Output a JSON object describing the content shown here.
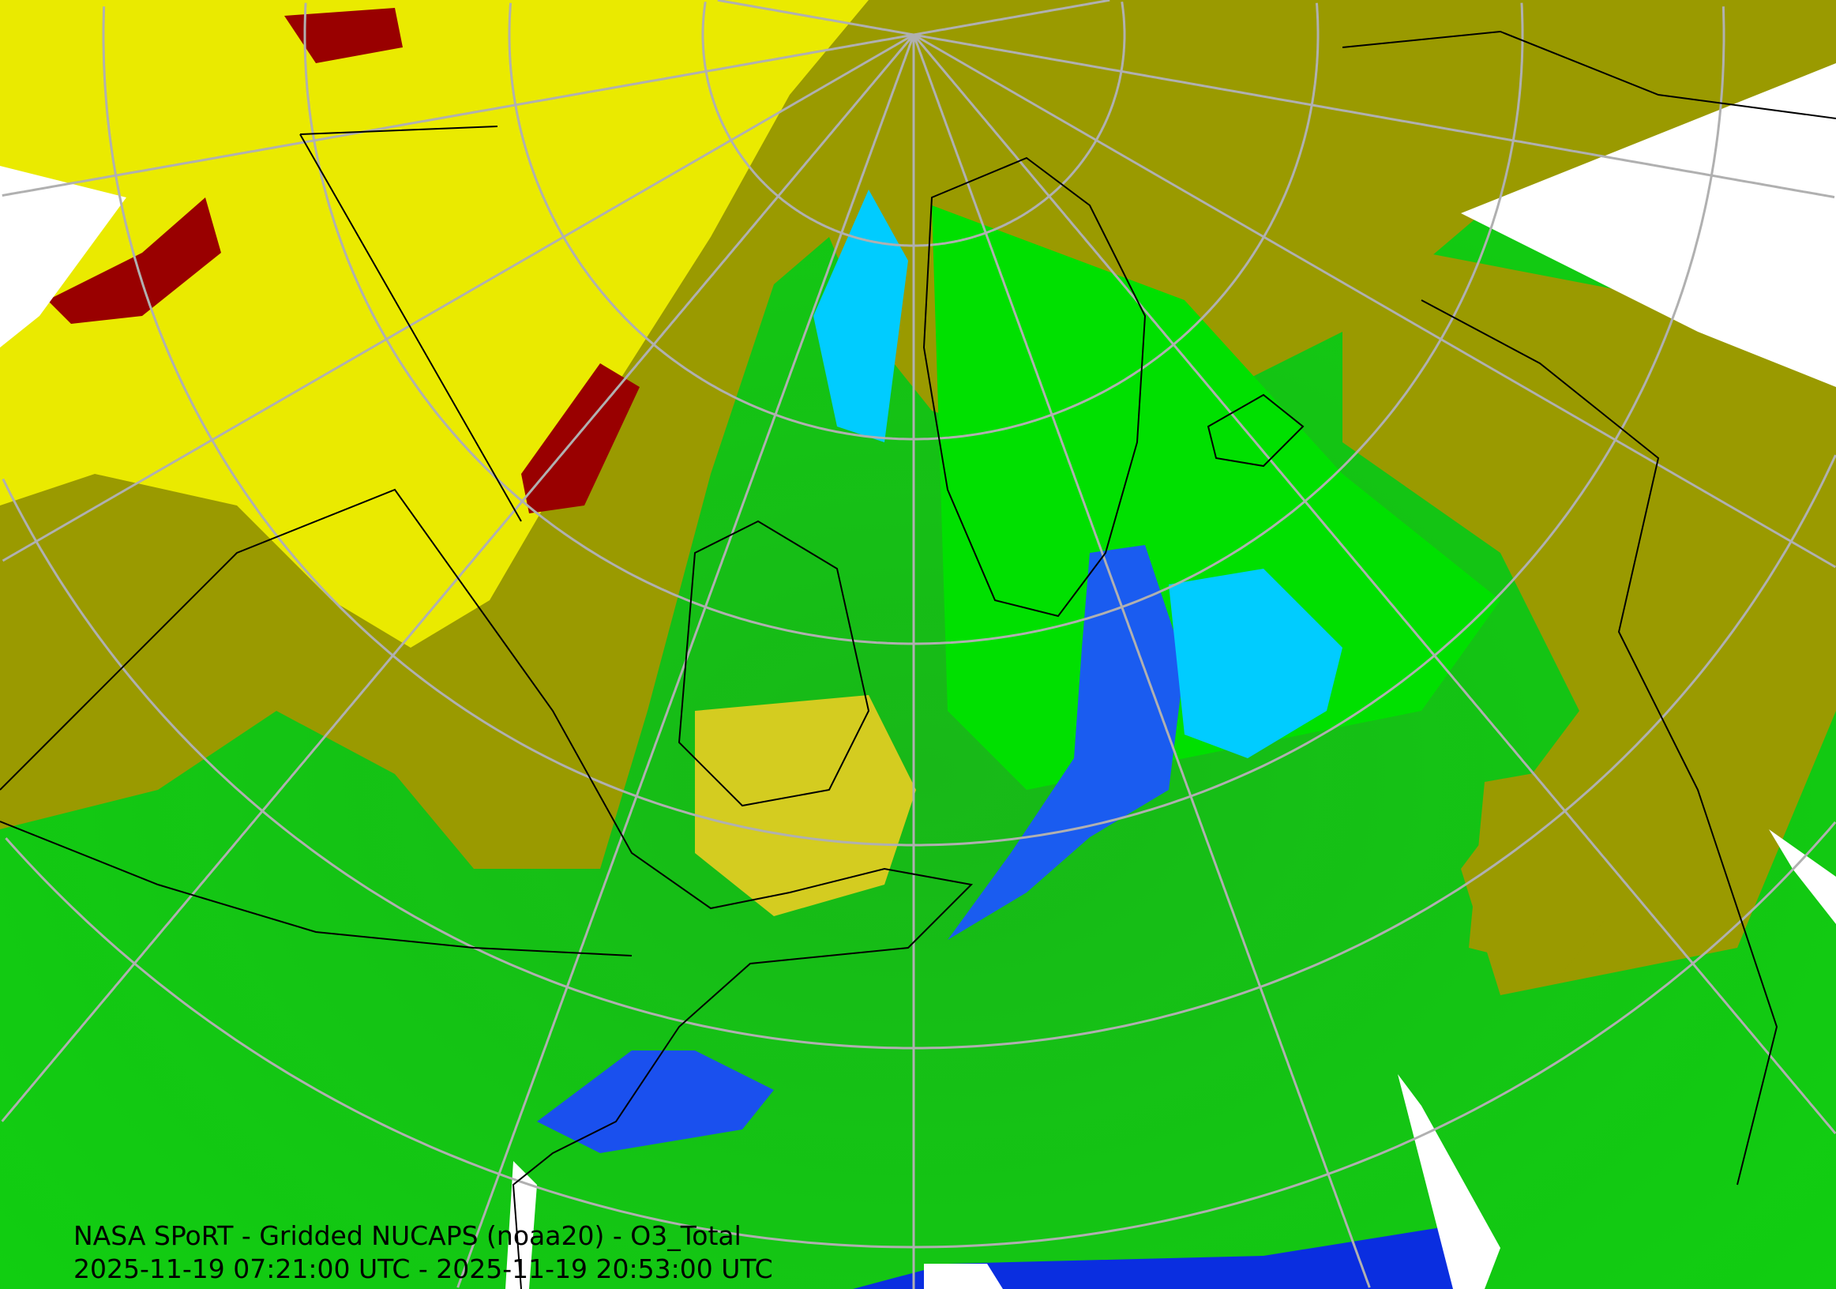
{
  "map": {
    "title": "NASA SPoRT - Gridded NUCAPS (noaa20) - O3_Total",
    "time_range": "2025-11-19 07:21:00 UTC - 2025-11-19 20:53:00 UTC",
    "projection": "north-polar-stereographic",
    "colors": {
      "background_green": "#22c41a",
      "bright_green": "#00e000",
      "dark_green": "#119a11",
      "olive": "#9a9a00",
      "yellow": "#f2f200",
      "dark_red": "#990000",
      "light_blue": "#00ccff",
      "blue": "#1a5cf0",
      "dark_blue": "#0a2ee0",
      "missing": "#ffffff",
      "graticule": "#b0b0b0",
      "coastline": "#000000"
    }
  }
}
